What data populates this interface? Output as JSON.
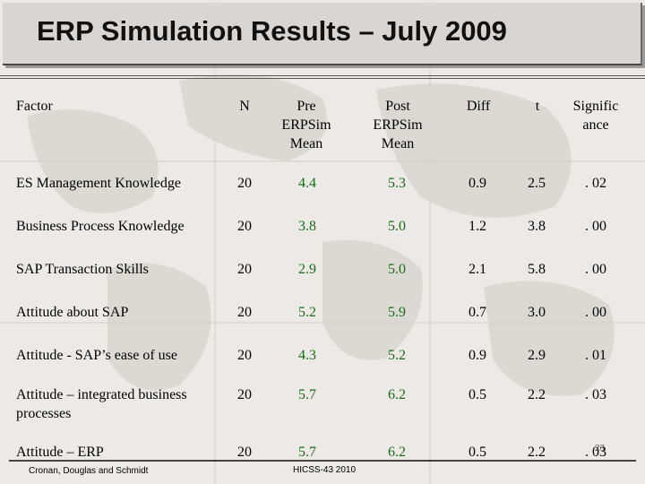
{
  "slide": {
    "title": "ERP Simulation Results – July 2009",
    "number": "23"
  },
  "table": {
    "headers": {
      "factor": "Factor",
      "n": "N",
      "pre_line1": "Pre",
      "pre_line2": "ERPSim",
      "pre_line3": "Mean",
      "post_line1": "Post",
      "post_line2": "ERPSim",
      "post_line3": "Mean",
      "diff": "Diff",
      "t": "t",
      "sig_line1": "Signific",
      "sig_line2": "ance"
    },
    "rows": [
      {
        "factor": "ES Management Knowledge",
        "n": "20",
        "pre": "4.4",
        "post": "5.3",
        "diff": "0.9",
        "t": "2.5",
        "sig": ". 02"
      },
      {
        "factor": "Business Process Knowledge",
        "n": "20",
        "pre": "3.8",
        "post": "5.0",
        "diff": "1.2",
        "t": "3.8",
        "sig": ". 00"
      },
      {
        "factor": "SAP Transaction Skills",
        "n": "20",
        "pre": "2.9",
        "post": "5.0",
        "diff": "2.1",
        "t": "5.8",
        "sig": ". 00"
      },
      {
        "factor": "Attitude about SAP",
        "n": "20",
        "pre": "5.2",
        "post": "5.9",
        "diff": "0.7",
        "t": "3.0",
        "sig": ". 00"
      },
      {
        "factor": "Attitude - SAP’s ease of use",
        "n": "20",
        "pre": "4.3",
        "post": "5.2",
        "diff": "0.9",
        "t": "2.9",
        "sig": ". 01"
      },
      {
        "factor_line1": "Attitude – integrated business",
        "factor_line2": "processes",
        "n": "20",
        "pre": "5.7",
        "post": "6.2",
        "diff": "0.5",
        "t": "2.2",
        "sig": ". 03"
      },
      {
        "factor": "Attitude – ERP",
        "n": "20",
        "pre": "5.7",
        "post": "6.2",
        "diff": "0.5",
        "t": "2.2",
        "sig": ". 03"
      }
    ]
  },
  "footer": {
    "authors": "Cronan, Douglas and Schmidt",
    "conference": "HICSS-43 2010"
  },
  "colors": {
    "accent_green": "#1a6b1a",
    "title_bg": "#d8d5d2"
  }
}
